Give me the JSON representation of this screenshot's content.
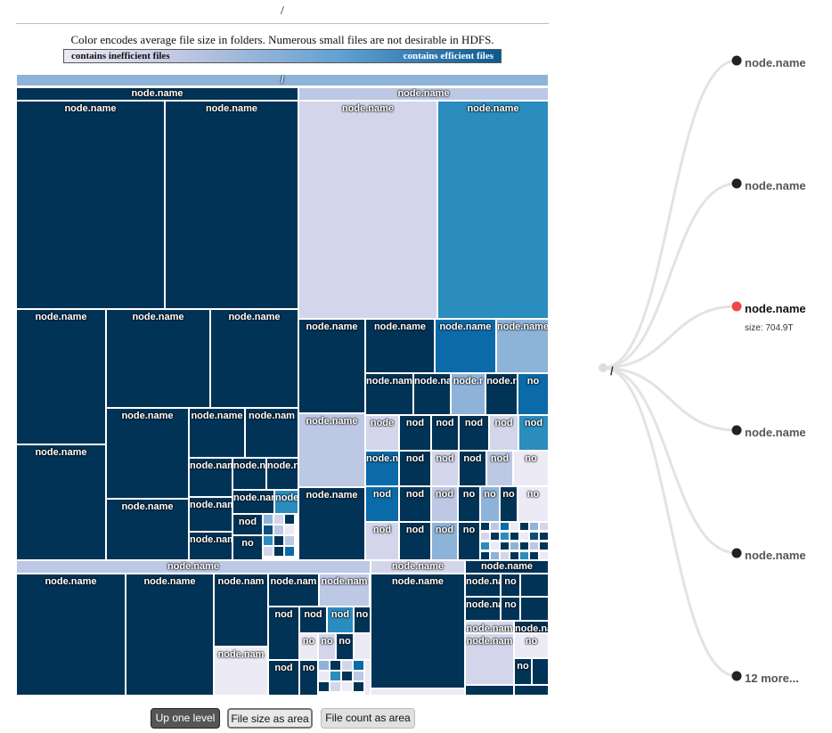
{
  "breadcrumb": "/",
  "legend": {
    "caption": "Color encodes average file size in folders. Numerous small files are not desirable in HDFS.",
    "low_label": "contains inefficient files",
    "high_label": "contains efficient files"
  },
  "treemap": {
    "root_label": "/",
    "node_label": "node.name",
    "truncated_labels": [
      "node.nam",
      "node.n",
      "node.r",
      "node",
      "nod",
      "no",
      "node.name"
    ],
    "palette": [
      "#003356",
      "#0a4f7e",
      "#0b6aa8",
      "#2b8cbe",
      "#8eb3d8",
      "#bcc8e4",
      "#d3d6ea",
      "#eceaf4"
    ]
  },
  "buttons": {
    "up": "Up one level",
    "size": "File size as area",
    "count": "File count as area"
  },
  "tree": {
    "root": "/",
    "children": [
      {
        "label": "node.name"
      },
      {
        "label": "node.name"
      },
      {
        "label": "node.name",
        "selected": true,
        "detail": "size: 704.9T"
      },
      {
        "label": "node.name"
      },
      {
        "label": "node.name"
      },
      {
        "label": "12 more..."
      }
    ],
    "colors": {
      "link": "#e3e3e3",
      "dot": "#222222",
      "selected_dot": "#f04848",
      "root_dot": "#dddddd"
    }
  }
}
